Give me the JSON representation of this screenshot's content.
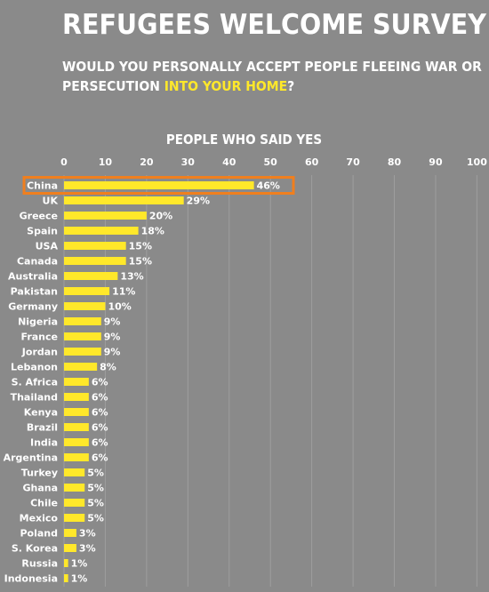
{
  "header": {
    "title": "REFUGEES WELCOME SURVEY",
    "question_part1": "WOULD YOU PERSONALLY ACCEPT PEOPLE FLEEING WAR OR",
    "question_part2": "PERSECUTION ",
    "question_highlight": "INTO YOUR HOME",
    "question_end": "?"
  },
  "colors": {
    "background": "#8a8a8a",
    "bar": "#ffe82a",
    "highlight_box": "#f07f1e",
    "gridline": "#9e9e9e"
  },
  "chart_data": {
    "type": "bar",
    "orientation": "horizontal",
    "title": "PEOPLE WHO SAID YES",
    "xlim": [
      0,
      100
    ],
    "xticks": [
      0,
      10,
      20,
      30,
      40,
      50,
      60,
      70,
      80,
      90,
      100
    ],
    "highlighted_category": "China",
    "categories": [
      "China",
      "UK",
      "Greece",
      "Spain",
      "USA",
      "Canada",
      "Australia",
      "Pakistan",
      "Germany",
      "Nigeria",
      "France",
      "Jordan",
      "Lebanon",
      "S. Africa",
      "Thailand",
      "Kenya",
      "Brazil",
      "India",
      "Argentina",
      "Turkey",
      "Ghana",
      "Chile",
      "Mexico",
      "Poland",
      "S. Korea",
      "Russia",
      "Indonesia"
    ],
    "values": [
      46,
      29,
      20,
      18,
      15,
      15,
      13,
      11,
      10,
      9,
      9,
      9,
      8,
      6,
      6,
      6,
      6,
      6,
      6,
      5,
      5,
      5,
      5,
      3,
      3,
      1,
      1
    ],
    "value_labels": [
      "46%",
      "29%",
      "20%",
      "18%",
      "15%",
      "15%",
      "13%",
      "11%",
      "10%",
      "9%",
      "9%",
      "9%",
      "8%",
      "6%",
      "6%",
      "6%",
      "6%",
      "6%",
      "6%",
      "5%",
      "5%",
      "5%",
      "5%",
      "3%",
      "3%",
      "1%",
      "1%"
    ],
    "grid": true
  }
}
